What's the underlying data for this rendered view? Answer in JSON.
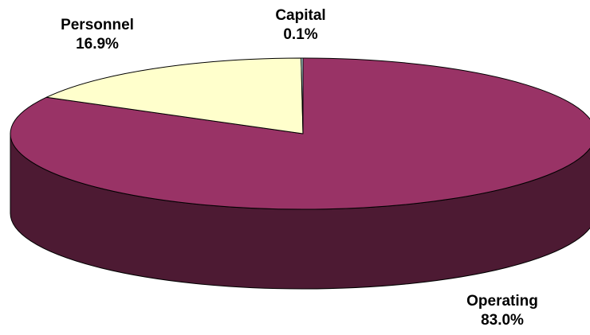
{
  "chart_data": {
    "type": "pie",
    "categories": [
      "Operating",
      "Personnel",
      "Capital"
    ],
    "values": [
      83.0,
      16.9,
      0.1
    ],
    "labels": [
      {
        "name": "Operating",
        "percent": "83.0%"
      },
      {
        "name": "Personnel",
        "percent": "16.9%"
      },
      {
        "name": "Capital",
        "percent": "0.1%"
      }
    ],
    "style": "3d",
    "colors": {
      "Operating": {
        "top": "#993366",
        "side": "#4D1A33"
      },
      "Personnel": {
        "top": "#FFFFCC",
        "side": "#808066"
      },
      "Capital": {
        "top": "#CCFFFF",
        "side": "#668080"
      }
    },
    "legend": "none",
    "title": ""
  }
}
